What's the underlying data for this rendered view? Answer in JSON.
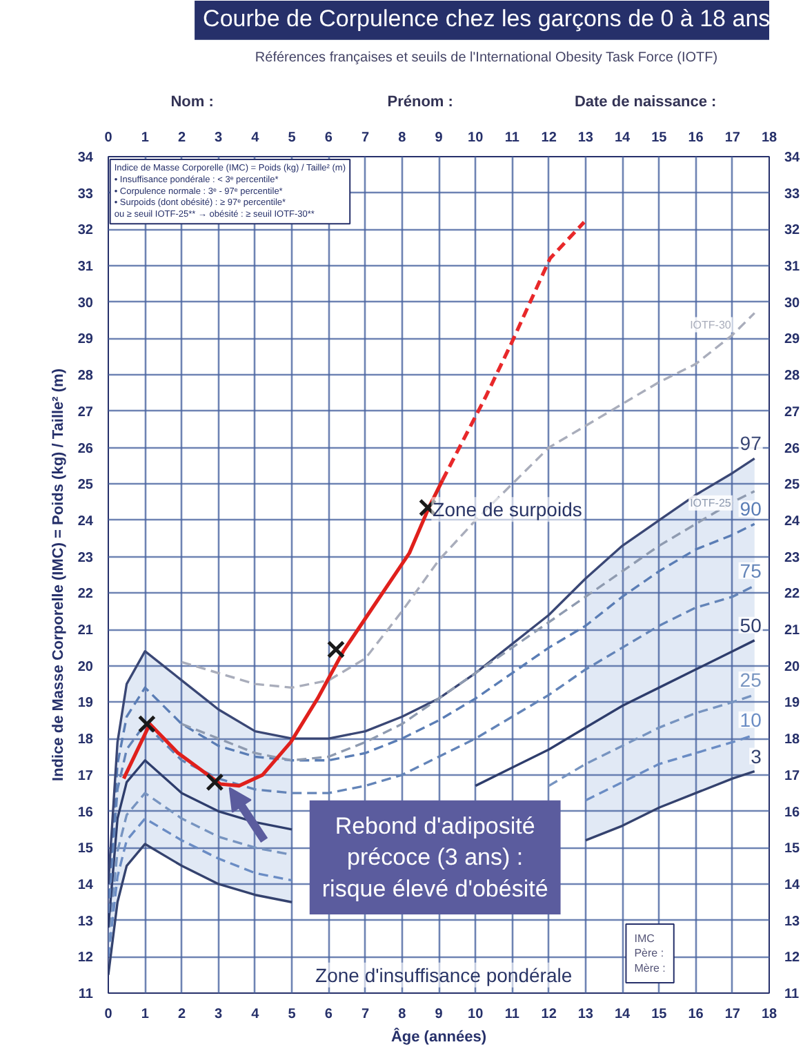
{
  "chart_data": {
    "type": "line",
    "title": "Courbe de Corpulence chez les garçons de 0 à 18 ans",
    "subtitle": "Références françaises et seuils de l'International Obesity Task Force (IOTF)",
    "xlabel": "Âge (années)",
    "ylabel": "Indice de Masse Corporelle (IMC) = Poids (kg) / Taille² (m)",
    "xlim": [
      0,
      18
    ],
    "xticks": [
      0,
      1,
      2,
      3,
      4,
      5,
      6,
      7,
      8,
      9,
      10,
      11,
      12,
      13,
      14,
      15,
      16,
      17,
      18
    ],
    "x2lim": [
      0,
      18
    ],
    "x2ticks": [
      0,
      1,
      2,
      3,
      4,
      5,
      6,
      7,
      8,
      9,
      10,
      11,
      12,
      13,
      14,
      15,
      16,
      17,
      18
    ],
    "ylim": [
      11,
      34
    ],
    "yticks": [
      11,
      12,
      13,
      14,
      15,
      16,
      17,
      18,
      19,
      20,
      21,
      22,
      23,
      24,
      25,
      26,
      27,
      28,
      29,
      30,
      31,
      32,
      33,
      34
    ],
    "y2lim": [
      11,
      34
    ],
    "y2ticks": [
      11,
      12,
      13,
      14,
      15,
      16,
      17,
      18,
      19,
      20,
      21,
      22,
      23,
      24,
      25,
      26,
      27,
      28,
      29,
      30,
      31,
      32,
      33,
      34
    ],
    "grid": true,
    "legend": false,
    "series": [
      {
        "name": "3",
        "color": "#34426e",
        "line_style": "solid",
        "x": [
          0,
          0.25,
          0.5,
          1,
          2,
          3,
          4,
          5,
          6,
          7,
          8,
          9,
          10,
          11,
          12,
          13,
          14,
          15,
          16,
          17,
          17.6
        ],
        "values": [
          11.5,
          13.5,
          14.5,
          15.1,
          14.5,
          14.0,
          13.7,
          13.5,
          null,
          null,
          null,
          null,
          null,
          null,
          null,
          15.2,
          15.6,
          16.1,
          16.5,
          16.9,
          17.1
        ]
      },
      {
        "name": "10",
        "color": "#6a8cc4",
        "line_style": "dashed",
        "x": [
          0,
          0.25,
          0.5,
          1,
          2,
          3,
          4,
          5,
          6,
          7,
          8,
          9,
          10,
          11,
          12,
          13,
          14,
          15,
          16,
          17,
          17.6
        ],
        "values": [
          12.0,
          14.2,
          15.2,
          15.8,
          15.2,
          14.7,
          14.3,
          14.1,
          null,
          null,
          null,
          null,
          null,
          null,
          null,
          16.3,
          16.8,
          17.3,
          17.6,
          17.9,
          18.1
        ]
      },
      {
        "name": "25",
        "color": "#7794c0",
        "line_style": "dashed",
        "x": [
          0,
          0.25,
          0.5,
          1,
          2,
          3,
          4,
          5,
          6,
          7,
          8,
          9,
          10,
          11,
          12,
          13,
          14,
          15,
          16,
          17,
          17.6
        ],
        "values": [
          12.4,
          14.9,
          15.9,
          16.5,
          15.8,
          15.3,
          15.0,
          14.8,
          null,
          null,
          null,
          null,
          null,
          null,
          16.7,
          17.3,
          17.8,
          18.3,
          18.7,
          19.0,
          19.2
        ]
      },
      {
        "name": "50",
        "color": "#2e3d6c",
        "line_style": "solid",
        "x": [
          0,
          0.25,
          0.5,
          1,
          2,
          3,
          4,
          5,
          6,
          7,
          8,
          9,
          10,
          11,
          12,
          13,
          14,
          15,
          16,
          17,
          17.6
        ],
        "values": [
          12.8,
          15.8,
          16.8,
          17.4,
          16.5,
          16.0,
          15.7,
          15.5,
          null,
          null,
          null,
          null,
          16.7,
          17.2,
          17.7,
          18.3,
          18.9,
          19.4,
          19.9,
          20.4,
          20.7
        ],
        "lower": [
          11.5,
          13.5,
          14.5,
          15.1,
          14.5,
          14.0,
          13.7,
          13.5,
          null,
          null,
          null,
          null,
          null,
          null,
          null,
          15.2,
          15.6,
          16.1,
          16.5,
          16.9,
          17.1
        ],
        "upper": [
          14.0,
          17.9,
          19.5,
          20.4,
          19.6,
          18.8,
          18.2,
          18.0,
          null,
          null,
          null,
          null,
          null,
          null,
          null,
          22.4,
          23.3,
          24.0,
          24.7,
          25.3,
          25.7
        ]
      },
      {
        "name": "75",
        "color": "#6384b8",
        "line_style": "dashed",
        "x": [
          0,
          0.25,
          0.5,
          1,
          2,
          3,
          4,
          5,
          6,
          7,
          8,
          9,
          10,
          11,
          12,
          13,
          14,
          15,
          16,
          17,
          17.6
        ],
        "values": [
          13.2,
          16.6,
          17.7,
          18.4,
          17.4,
          16.9,
          16.6,
          16.5,
          16.5,
          16.7,
          17.0,
          17.5,
          18.0,
          18.6,
          19.2,
          19.9,
          20.5,
          21.1,
          21.6,
          21.9,
          22.2
        ]
      },
      {
        "name": "90",
        "color": "#5a7db5",
        "line_style": "dashed",
        "x": [
          0,
          0.25,
          0.5,
          1,
          2,
          3,
          4,
          5,
          6,
          7,
          8,
          9,
          10,
          11,
          12,
          13,
          14,
          15,
          16,
          17,
          17.6
        ],
        "values": [
          13.6,
          17.3,
          18.6,
          19.4,
          18.4,
          17.8,
          17.5,
          17.4,
          17.4,
          17.6,
          18.0,
          18.5,
          19.1,
          19.8,
          20.5,
          21.1,
          21.9,
          22.6,
          23.2,
          23.6,
          23.9
        ]
      },
      {
        "name": "97",
        "color": "#3a4775",
        "line_style": "solid",
        "x": [
          0,
          0.25,
          0.5,
          1,
          2,
          3,
          4,
          5,
          6,
          7,
          8,
          9,
          10,
          11,
          12,
          13,
          14,
          15,
          16,
          17,
          17.6
        ],
        "values": [
          14.0,
          17.9,
          19.5,
          20.4,
          19.6,
          18.8,
          18.2,
          18.0,
          18.0,
          18.2,
          18.6,
          19.1,
          19.8,
          20.6,
          21.4,
          22.4,
          23.3,
          24.0,
          24.7,
          25.3,
          25.7
        ]
      },
      {
        "name": "IOTF-25",
        "color": "#8f9bb0",
        "line_style": "dashed",
        "x": [
          2,
          3,
          4,
          5,
          6,
          7,
          8,
          9,
          10,
          11,
          12,
          13,
          14,
          15,
          16,
          17,
          17.6
        ],
        "values": [
          18.4,
          18.0,
          17.6,
          17.4,
          17.5,
          17.9,
          18.4,
          19.1,
          19.8,
          20.5,
          21.2,
          21.9,
          22.6,
          23.3,
          23.9,
          24.5,
          24.8
        ]
      },
      {
        "name": "IOTF-30",
        "color": "#a9adbb",
        "line_style": "dashed",
        "x": [
          2,
          3,
          4,
          5,
          6,
          7,
          8,
          9,
          10,
          11,
          12,
          13,
          14,
          15,
          16,
          17,
          17.6
        ],
        "values": [
          20.1,
          19.8,
          19.5,
          19.4,
          19.6,
          20.2,
          21.5,
          22.9,
          24.0,
          25.0,
          26.0,
          26.6,
          27.2,
          27.8,
          28.3,
          29.1,
          29.7
        ]
      },
      {
        "color": "#e0201c",
        "line_style": "solid",
        "x": [
          0.42,
          1.13,
          1.9,
          3.05,
          3.56,
          4.2,
          4.97,
          5.7,
          6.4,
          7.3,
          8.2,
          8.73,
          9.1
        ],
        "values": [
          16.9,
          18.4,
          17.6,
          16.75,
          16.7,
          17.0,
          17.9,
          19.1,
          20.4,
          21.75,
          23.1,
          24.35,
          25.1
        ]
      },
      {
        "color": "#e8282a",
        "line_style": "dashed",
        "x": [
          9.1,
          10.28,
          10.97,
          12.03,
          12.96
        ],
        "values": [
          25.1,
          27.4,
          28.85,
          31.2,
          32.2
        ]
      },
      {
        "type": "scatter",
        "marker": "cross",
        "color": "#1a1a1a",
        "x": [
          1.05,
          2.9,
          6.2,
          8.7
        ],
        "values": [
          18.4,
          16.8,
          20.45,
          24.35
        ]
      }
    ],
    "annotations": [
      "Nom :",
      "Prénom :",
      "Date de naissance :",
      "Indice de Masse Corporelle (IMC) = Poids (kg) / Taille² (m)\n• Insuffisance pondérale : < 3ᵉ percentile*\n• Corpulence normale : 3ᵉ - 97ᵉ percentile*\n• Surpoids (dont obésité) : ≥ 97ᵉ percentile*\n  ou ≥ seuil IOTF-25** → obésité : ≥ seuil IOTF-30**",
      "Zone de surpoids",
      "Zone d'insuffisance pondérale",
      "Rebond d'adiposité\nprécoce (3 ans) :\nrisque élevé d'obésité",
      "IMC\nPère :\nMère :"
    ]
  }
}
